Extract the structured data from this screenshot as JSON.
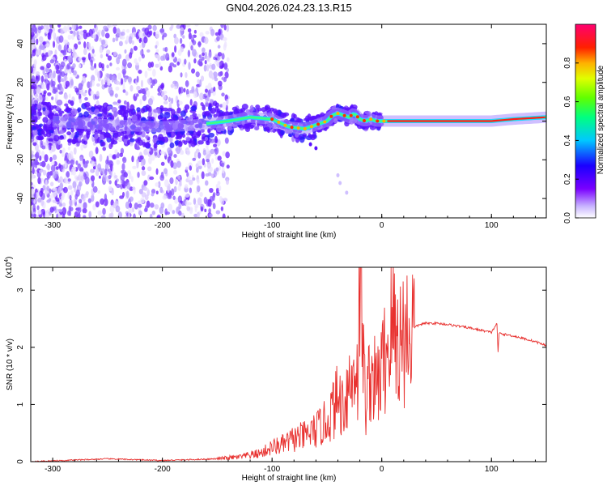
{
  "title": "GN04.2026.024.23.13.R15",
  "chart_data": [
    {
      "type": "heatmap",
      "xlabel": "Height of straight line (km)",
      "ylabel": "Frequency (Hz)",
      "xlim": [
        -320,
        150
      ],
      "ylim": [
        -50,
        50
      ],
      "xticks": [
        -300,
        -200,
        -100,
        0,
        100
      ],
      "xtick_labels": [
        "-300",
        "-200",
        "-100",
        "0",
        "100"
      ],
      "yticks": [
        -40,
        -20,
        0,
        20,
        40
      ],
      "ytick_labels": [
        "-40",
        "-20",
        "0",
        "20",
        "40"
      ],
      "colorbar": {
        "label": "Normalized spectral amplitude",
        "range": [
          0,
          1
        ],
        "ticks": [
          0.0,
          0.2,
          0.4,
          0.6,
          0.8
        ],
        "tick_labels": [
          "0.0",
          "0.2",
          "0.4",
          "0.6",
          "0.8"
        ]
      },
      "description_ridge": {
        "x": [
          -300,
          -250,
          -200,
          -170,
          -140,
          -120,
          -100,
          -85,
          -70,
          -60,
          -50,
          -45,
          -40,
          -30,
          -25,
          -20,
          -15,
          -10,
          -5,
          0,
          20,
          50,
          80,
          100,
          120,
          150
        ],
        "y": [
          0,
          -2,
          -3,
          -2,
          0,
          2,
          1,
          -3,
          -4,
          -2,
          0,
          3,
          4,
          2,
          4,
          1,
          0,
          1,
          0,
          0,
          0,
          0,
          0,
          0,
          1,
          2
        ]
      }
    },
    {
      "type": "line",
      "xlabel": "Height of straight line (km)",
      "ylabel": "SNR (10 * v/v)",
      "multiplier_label": "(x10",
      "multiplier_exp": "4",
      "xlim": [
        -320,
        150
      ],
      "ylim": [
        0,
        3.4
      ],
      "xticks": [
        -300,
        -200,
        -100,
        0,
        100
      ],
      "xtick_labels": [
        "-300",
        "-200",
        "-100",
        "0",
        "100"
      ],
      "yticks": [
        0,
        1,
        2,
        3
      ],
      "ytick_labels": [
        "0",
        "1",
        "2",
        "3"
      ],
      "series": [
        {
          "name": "SNR",
          "color": "#e8302e",
          "x": [
            -320,
            -250,
            -200,
            -150,
            -130,
            -110,
            -100,
            -90,
            -80,
            -70,
            -60,
            -50,
            -45,
            -40,
            -35,
            -30,
            -27,
            -25,
            -22,
            -20,
            -17,
            -15,
            -10,
            -5,
            0,
            5,
            10,
            15,
            20,
            25,
            30,
            35,
            40,
            50,
            60,
            70,
            80,
            90,
            100,
            105,
            106,
            107,
            110,
            120,
            130,
            140,
            150
          ],
          "y": [
            0.0,
            0.05,
            0.02,
            0.05,
            0.08,
            0.15,
            0.25,
            0.3,
            0.4,
            0.45,
            0.55,
            0.7,
            0.9,
            1.1,
            1.0,
            1.4,
            1.3,
            1.8,
            1.5,
            3.4,
            2.0,
            1.0,
            1.6,
            1.3,
            1.6,
            2.0,
            2.4,
            2.1,
            2.2,
            2.3,
            2.35,
            2.4,
            2.42,
            2.42,
            2.4,
            2.37,
            2.34,
            2.3,
            2.26,
            2.42,
            1.9,
            2.25,
            2.23,
            2.2,
            2.15,
            2.1,
            2.03
          ]
        }
      ]
    }
  ]
}
